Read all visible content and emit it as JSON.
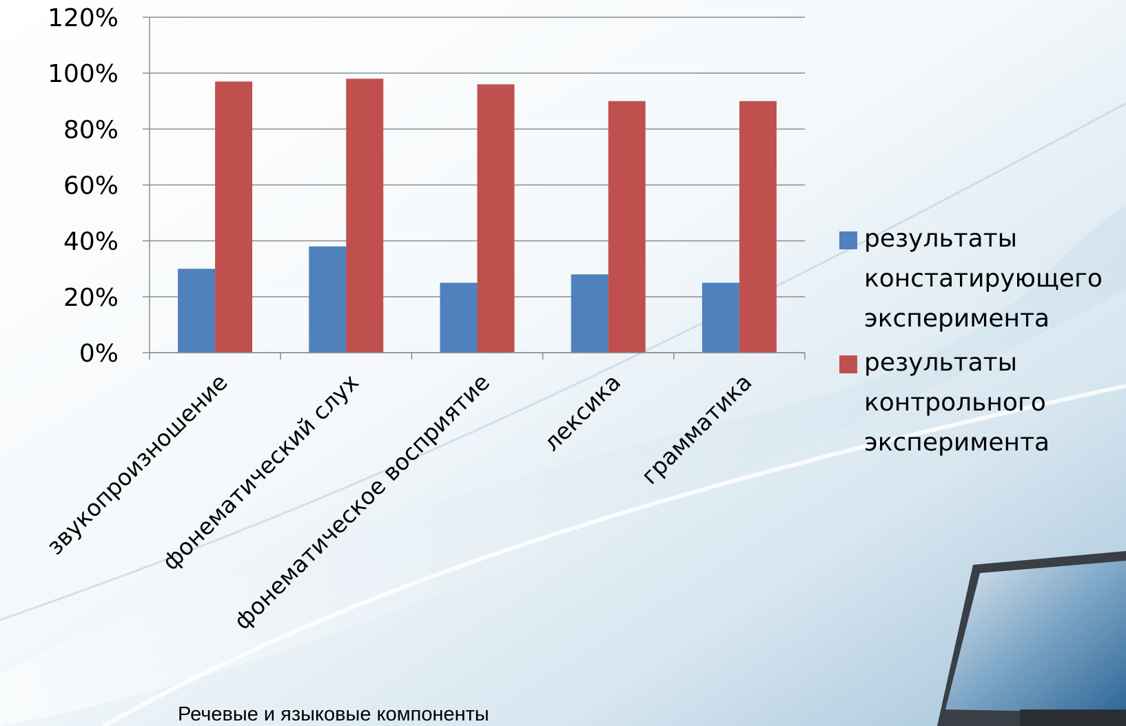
{
  "colors": {
    "series1": "#4F81BD",
    "series2": "#C0504D",
    "grid": "#8C8C8C"
  },
  "chart_data": {
    "type": "bar",
    "categories": [
      "звукопроизношение",
      "фонематический слух",
      "фонематическое восприятие",
      "лексика",
      "грамматика"
    ],
    "series": [
      {
        "name": "результаты констатирующего эксперимента",
        "values": [
          30,
          38,
          25,
          28,
          25
        ]
      },
      {
        "name": "результаты контрольного эксперимента",
        "values": [
          97,
          98,
          96,
          90,
          90
        ]
      }
    ],
    "ylim": [
      0,
      120
    ],
    "yticks": [
      "0%",
      "20%",
      "40%",
      "60%",
      "80%",
      "100%",
      "120%"
    ],
    "xlabel": "Речевые и языковые компоненты",
    "ylabel": "",
    "grid": true,
    "legend_position": "right"
  },
  "legend": {
    "items": [
      {
        "lines": [
          "результаты",
          "констатирующего",
          "эксперимента"
        ]
      },
      {
        "lines": [
          "результаты",
          "контрольного",
          "эксперимента"
        ]
      }
    ]
  }
}
